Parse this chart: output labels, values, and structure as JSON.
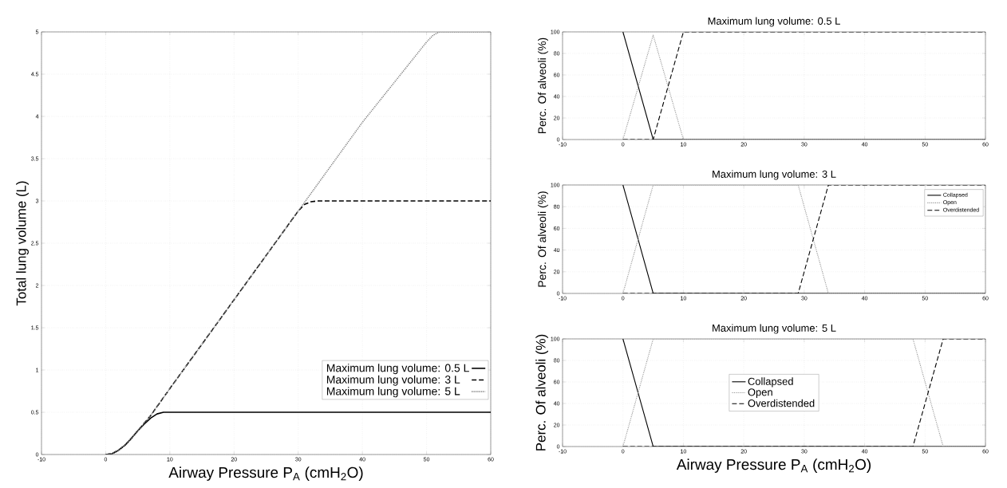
{
  "chart_data": [
    {
      "type": "line",
      "xlabel": "Airway Pressure P$_{A}$ (cmH$_{2}$O)",
      "ylabel": "Total lung volume (L)",
      "xlim": [
        -10,
        60
      ],
      "ylim": [
        0,
        5
      ],
      "xticks": [
        -10,
        0,
        10,
        20,
        30,
        40,
        50,
        60
      ],
      "yticks": [
        0,
        0.5,
        1,
        1.5,
        2,
        2.5,
        3,
        3.5,
        4,
        4.5,
        5
      ],
      "grid": true,
      "legend": "bottom right",
      "series": [
        {
          "name": "Maximum lung volume: 0.5 L",
          "color": "#000000",
          "line_style": "solid",
          "x": [
            0,
            1,
            2,
            3,
            4,
            5,
            6,
            7,
            8,
            9,
            10,
            60
          ],
          "values": [
            0,
            0.01,
            0.05,
            0.11,
            0.19,
            0.28,
            0.36,
            0.43,
            0.48,
            0.5,
            0.5,
            0.5
          ]
        },
        {
          "name": "Maximum lung volume: 3 L",
          "color": "#000000",
          "line_style": "dashed",
          "x": [
            0,
            1,
            2,
            3,
            4,
            5,
            6,
            7,
            10,
            20,
            30,
            31,
            32,
            33,
            60
          ],
          "values": [
            0,
            0.01,
            0.05,
            0.11,
            0.19,
            0.28,
            0.37,
            0.46,
            0.78,
            1.83,
            2.88,
            2.96,
            2.99,
            3,
            3
          ]
        },
        {
          "name": "Maximum lung volume: 5 L",
          "color": "#808080",
          "line_style": "dotted",
          "x": [
            0,
            1,
            2,
            3,
            4,
            5,
            6,
            7,
            10,
            20,
            30,
            40,
            50,
            51,
            52,
            60
          ],
          "values": [
            0,
            0.01,
            0.05,
            0.11,
            0.19,
            0.28,
            0.37,
            0.46,
            0.78,
            1.83,
            2.88,
            3.93,
            4.88,
            4.96,
            5,
            5
          ]
        }
      ]
    },
    {
      "type": "line",
      "title": "Maximum lung volume: 0.5 L",
      "ylabel": "Perc. Of alveoli (%)",
      "xlim": [
        -10,
        60
      ],
      "ylim": [
        0,
        100
      ],
      "xticks": [
        -10,
        0,
        10,
        20,
        30,
        40,
        50,
        60
      ],
      "yticks": [
        0,
        20,
        40,
        60,
        80,
        100
      ],
      "grid": true,
      "series": [
        {
          "color": "#000000",
          "line_style": "solid",
          "x": [
            0,
            5,
            60
          ],
          "values": [
            100,
            0,
            0
          ]
        },
        {
          "color": "#999999",
          "line_style": "dotted",
          "x": [
            0,
            5,
            10,
            60
          ],
          "values": [
            0,
            97,
            0,
            0
          ]
        },
        {
          "color": "#000000",
          "line_style": "dashed",
          "x": [
            0,
            5,
            10,
            60
          ],
          "values": [
            0,
            0,
            100,
            100
          ]
        }
      ]
    },
    {
      "type": "line",
      "title": "Maximum lung volume: 3 L",
      "ylabel": "Perc. Of alveoli (%)",
      "xlim": [
        -10,
        60
      ],
      "ylim": [
        0,
        100
      ],
      "xticks": [
        -10,
        0,
        10,
        20,
        30,
        40,
        50,
        60
      ],
      "yticks": [
        0,
        20,
        40,
        60,
        80,
        100
      ],
      "grid": true,
      "legend": "top right",
      "series": [
        {
          "name": "Collapsed",
          "color": "#000000",
          "line_style": "solid",
          "x": [
            0,
            5,
            60
          ],
          "values": [
            100,
            0,
            0
          ]
        },
        {
          "name": "Open",
          "color": "#999999",
          "line_style": "dotted",
          "x": [
            0,
            5,
            29,
            34,
            60
          ],
          "values": [
            0,
            100,
            100,
            0,
            0
          ]
        },
        {
          "name": "Overdistended",
          "color": "#000000",
          "line_style": "dashed",
          "x": [
            0,
            29,
            34,
            60
          ],
          "values": [
            0,
            0,
            100,
            100
          ]
        }
      ]
    },
    {
      "type": "line",
      "title": "Maximum lung volume: 5 L",
      "xlabel": "Airway Pressure P$_{A}$ (cmH$_{2}$O)",
      "ylabel": "Perc. Of alveoli (%)",
      "xlim": [
        -10,
        60
      ],
      "ylim": [
        0,
        100
      ],
      "xticks": [
        -10,
        0,
        10,
        20,
        30,
        40,
        50,
        60
      ],
      "yticks": [
        0,
        20,
        40,
        60,
        80,
        100
      ],
      "grid": true,
      "legend": "center",
      "series": [
        {
          "name": "Collapsed",
          "color": "#000000",
          "line_style": "solid",
          "x": [
            0,
            5,
            60
          ],
          "values": [
            100,
            0,
            0
          ]
        },
        {
          "name": "Open",
          "color": "#999999",
          "line_style": "dotted",
          "x": [
            0,
            5,
            48,
            53,
            60
          ],
          "values": [
            0,
            100,
            100,
            0,
            0
          ]
        },
        {
          "name": "Overdistended",
          "color": "#000000",
          "line_style": "dashed",
          "x": [
            0,
            48,
            53,
            60
          ],
          "values": [
            0,
            0,
            100,
            100
          ]
        }
      ]
    }
  ]
}
